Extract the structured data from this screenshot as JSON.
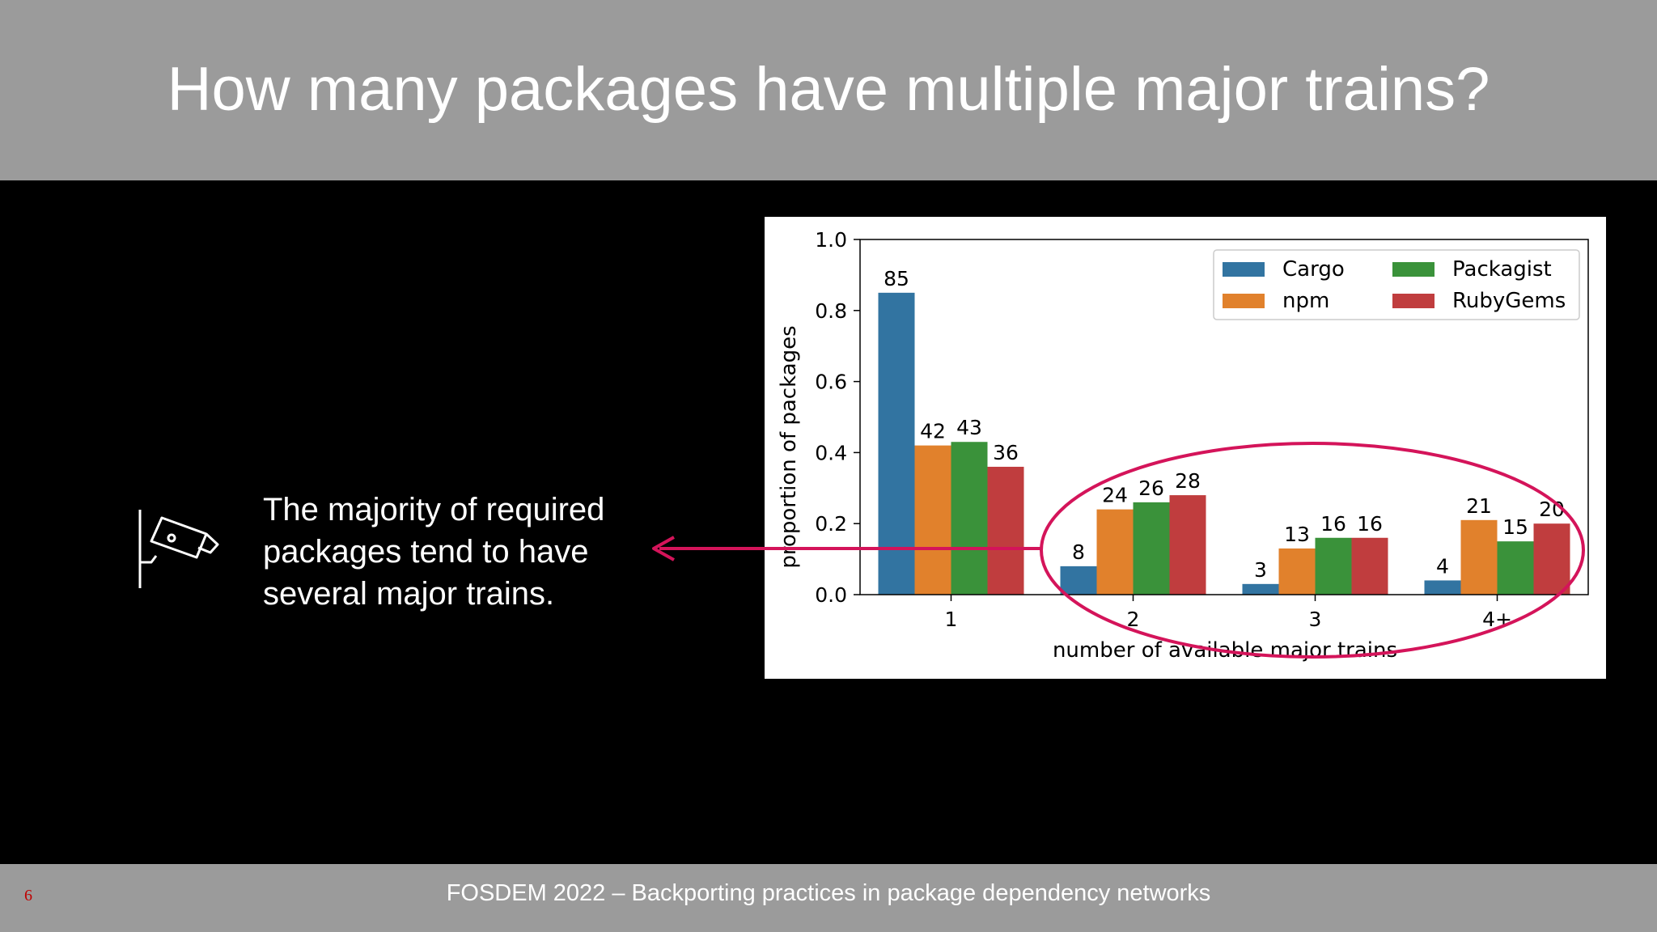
{
  "slide": {
    "title": "How many packages have multiple major trains?",
    "side_text_lines": [
      "The majority of required",
      "packages tend to have",
      "several major trains."
    ],
    "footer": "FOSDEM 2022 – Backporting practices in package dependency networks",
    "page_number": "6"
  },
  "icon": {
    "name": "security-camera-icon"
  },
  "colors": {
    "header_bg": "#9b9b9b",
    "highlight": "#d4145a",
    "Cargo": "#3274a1",
    "npm": "#e1812c",
    "Packagist": "#3a923a",
    "RubyGems": "#c03d3e"
  },
  "chart_data": {
    "type": "bar",
    "xlabel": "number of available major trains",
    "ylabel": "proportion of packages",
    "ylim": [
      0,
      1.0
    ],
    "yticks": [
      "0.0",
      "0.2",
      "0.4",
      "0.6",
      "0.8",
      "1.0"
    ],
    "categories": [
      "1",
      "2",
      "3",
      "4+"
    ],
    "series": [
      {
        "name": "Cargo",
        "values": [
          0.85,
          0.08,
          0.03,
          0.04
        ],
        "labels": [
          "85",
          "8",
          "3",
          "4"
        ]
      },
      {
        "name": "npm",
        "values": [
          0.42,
          0.24,
          0.13,
          0.21
        ],
        "labels": [
          "42",
          "24",
          "13",
          "21"
        ]
      },
      {
        "name": "Packagist",
        "values": [
          0.43,
          0.26,
          0.16,
          0.15
        ],
        "labels": [
          "43",
          "26",
          "16",
          "15"
        ]
      },
      {
        "name": "RubyGems",
        "values": [
          0.36,
          0.28,
          0.16,
          0.2
        ],
        "labels": [
          "36",
          "28",
          "16",
          "20"
        ]
      }
    ],
    "legend_order": [
      "Cargo",
      "npm",
      "Packagist",
      "RubyGems"
    ],
    "legend_placement": "top-right",
    "grid": false,
    "annotation": "ellipse highlighting categories 2, 3 and 4+ with an arrow pointing to the text"
  }
}
